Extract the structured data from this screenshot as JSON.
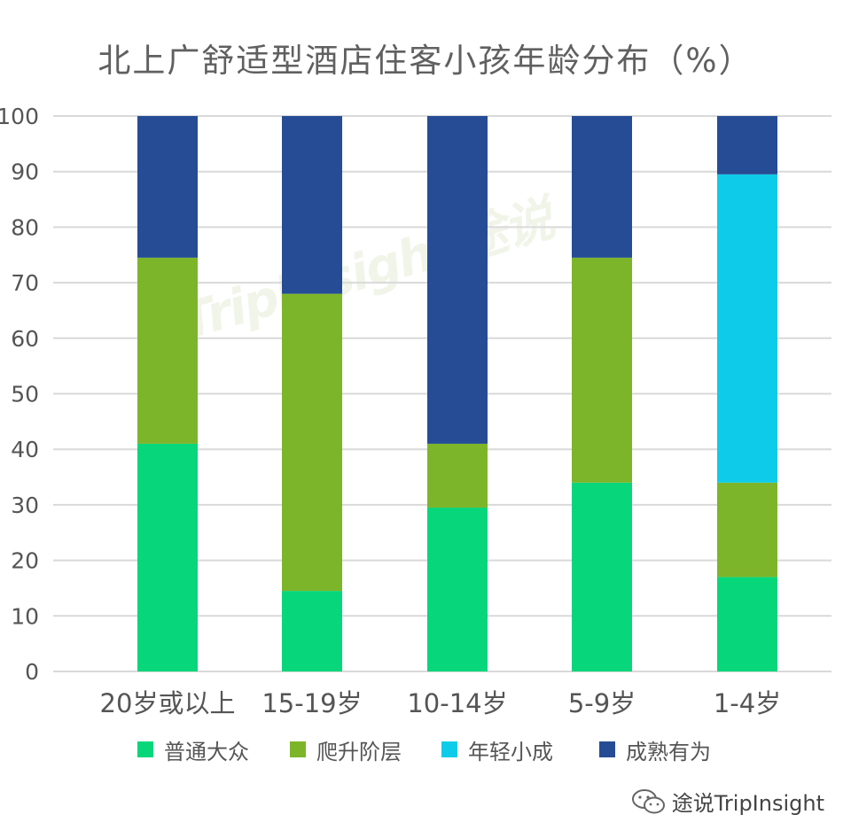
{
  "title": "北上广舒适型酒店住客小孩年龄分布（%）",
  "footer": {
    "brand": "途说TripInsight",
    "icon": "wechat-icon"
  },
  "watermark": {
    "text": "TripInsight",
    "sub": "途说"
  },
  "chart_data": {
    "type": "bar",
    "stacked": true,
    "categories": [
      "20岁或以上",
      "15-19岁",
      "10-14岁",
      "5-9岁",
      "1-4岁"
    ],
    "series": [
      {
        "name": "普通大众",
        "color": "#07D67B",
        "values": [
          41,
          14.5,
          29.5,
          34,
          17
        ]
      },
      {
        "name": "爬升阶层",
        "color": "#7DB52A",
        "values": [
          33.5,
          53.5,
          11.5,
          40.5,
          17
        ]
      },
      {
        "name": "年轻小成",
        "color": "#0ECCE9",
        "values": [
          0,
          0,
          0,
          0,
          55.5
        ]
      },
      {
        "name": "成熟有为",
        "color": "#254C95",
        "values": [
          25.5,
          32,
          59,
          25.5,
          10.5
        ]
      }
    ],
    "yticks": [
      0,
      10,
      20,
      30,
      40,
      50,
      60,
      70,
      80,
      90,
      100
    ],
    "ylim": [
      0,
      100
    ],
    "grid": true,
    "legend_position": "bottom"
  }
}
